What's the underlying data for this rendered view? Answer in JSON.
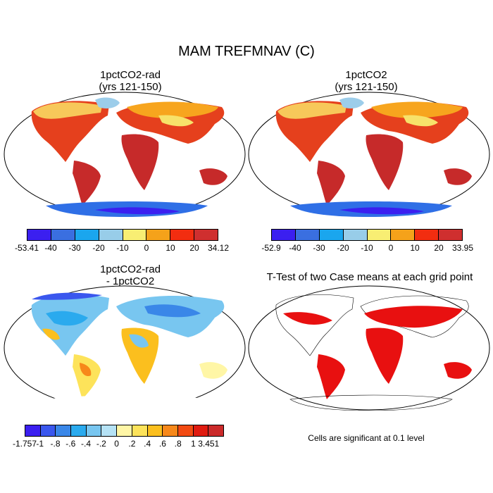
{
  "title": "MAM TREFMNAV (C)",
  "panels": [
    {
      "title_line1": "1pctCO2-rad",
      "title_line2": "(yrs 121-150)",
      "colorbar": {
        "labels": [
          "-53.41",
          "-40",
          "-30",
          "-20",
          "-10",
          "0",
          "10",
          "20",
          "34.12"
        ],
        "colors": [
          "#3b1ff0",
          "#3a6fe0",
          "#1aa6ee",
          "#98cde9",
          "#f8ee73",
          "#f5a21a",
          "#f22d10",
          "#cf2f2f"
        ]
      }
    },
    {
      "title_line1": "1pctCO2",
      "title_line2": "(yrs 121-150)",
      "colorbar": {
        "labels": [
          "-52.9",
          "-40",
          "-30",
          "-20",
          "-10",
          "0",
          "10",
          "20",
          "33.95"
        ],
        "colors": [
          "#3b1ff0",
          "#3a6fe0",
          "#1aa6ee",
          "#98cde9",
          "#f8ee73",
          "#f5a21a",
          "#f22d10",
          "#cf2f2f"
        ]
      }
    },
    {
      "title_line1": "1pctCO2-rad",
      "title_line2": "- 1pctCO2",
      "colorbar": {
        "labels": [
          "-1.757",
          "-1",
          "-.8",
          "-.6",
          "-.4",
          "-.2",
          "0",
          ".2",
          ".4",
          ".6",
          ".8",
          "1",
          "3.451"
        ],
        "colors": [
          "#3b1ff0",
          "#3a57ee",
          "#3a87e8",
          "#2aaaee",
          "#78c6f0",
          "#b5e2f5",
          "#fff6a6",
          "#fde35a",
          "#fbbf1e",
          "#f7881a",
          "#f24a12",
          "#e01b10",
          "#cb2a2a"
        ]
      }
    },
    {
      "title_line1": "T-Test of two Case means at each grid point",
      "note": "Cells are significant at 0.1 level"
    }
  ]
}
